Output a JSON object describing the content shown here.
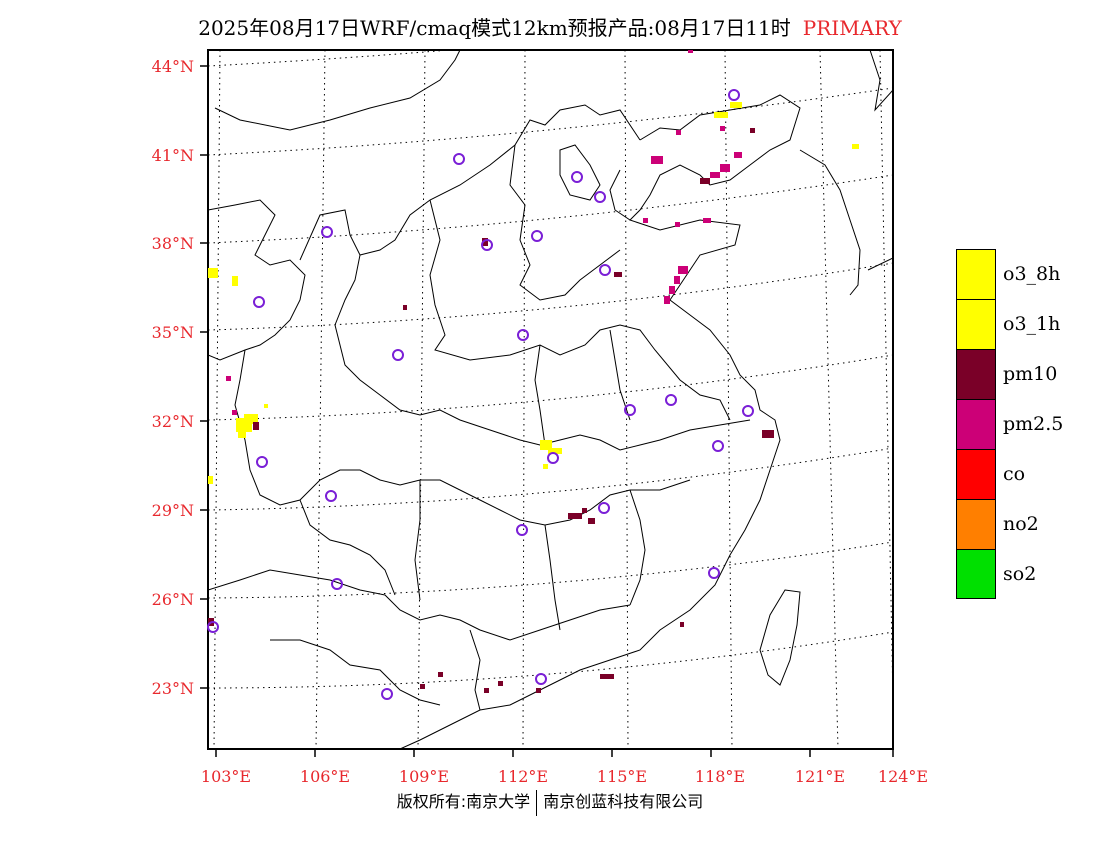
{
  "header": {
    "title": "2025年08月17日WRF/cmaq模式12km预报产品:08月17日11时",
    "tag": "PRIMARY"
  },
  "map": {
    "lat_labels": [
      "44°N",
      "41°N",
      "38°N",
      "35°N",
      "32°N",
      "29°N",
      "26°N",
      "23°N"
    ],
    "lon_labels": [
      "103°E",
      "106°E",
      "109°E",
      "112°E",
      "115°E",
      "118°E",
      "121°E",
      "124°E"
    ],
    "label_color": "#e8282d"
  },
  "legend": {
    "items": [
      {
        "label": "o3_8h",
        "color": "#ffff00"
      },
      {
        "label": "o3_1h",
        "color": "#ffff00"
      },
      {
        "label": "pm10",
        "color": "#7a0028"
      },
      {
        "label": "pm2.5",
        "color": "#cc0077"
      },
      {
        "label": "co",
        "color": "#ff0000"
      },
      {
        "label": "no2",
        "color": "#ff7f00"
      },
      {
        "label": "so2",
        "color": "#00e000"
      }
    ]
  },
  "footer": {
    "left": "版权所有:南京大学",
    "right": "南京创蓝科技有限公司"
  }
}
